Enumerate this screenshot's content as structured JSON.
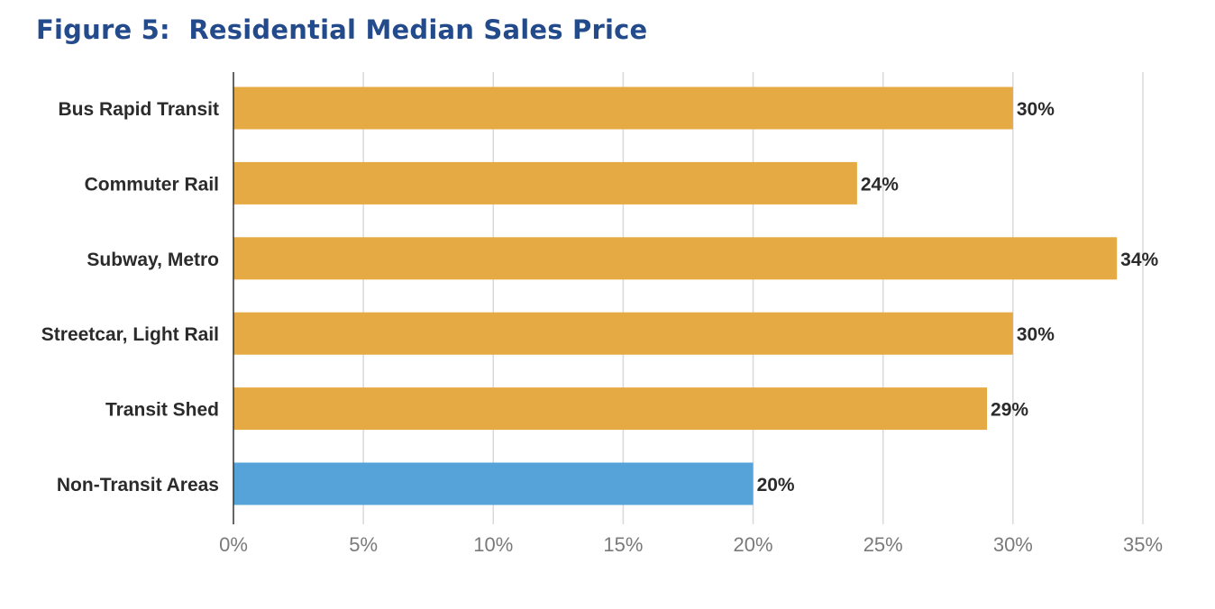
{
  "title": "Figure 5:  Residential Median Sales Price",
  "chart_data": {
    "type": "bar",
    "orientation": "horizontal",
    "title": "Figure 5:  Residential Median Sales Price",
    "categories": [
      "Bus Rapid Transit",
      "Commuter Rail",
      "Subway, Metro",
      "Streetcar, Light Rail",
      "Transit Shed",
      "Non-Transit Areas"
    ],
    "values": [
      30,
      24,
      34,
      30,
      29,
      20
    ],
    "value_labels": [
      "30%",
      "24%",
      "34%",
      "30%",
      "29%",
      "20%"
    ],
    "bar_colors": [
      "#e5aa43",
      "#e5aa43",
      "#e5aa43",
      "#e5aa43",
      "#e5aa43",
      "#55a3d9"
    ],
    "xlim": [
      0,
      35
    ],
    "x_ticks": [
      0,
      5,
      10,
      15,
      20,
      25,
      30,
      35
    ],
    "x_tick_labels": [
      "0%",
      "5%",
      "10%",
      "15%",
      "20%",
      "25%",
      "30%",
      "35%"
    ],
    "xlabel": "",
    "ylabel": "",
    "grid": true,
    "legend": "none"
  }
}
